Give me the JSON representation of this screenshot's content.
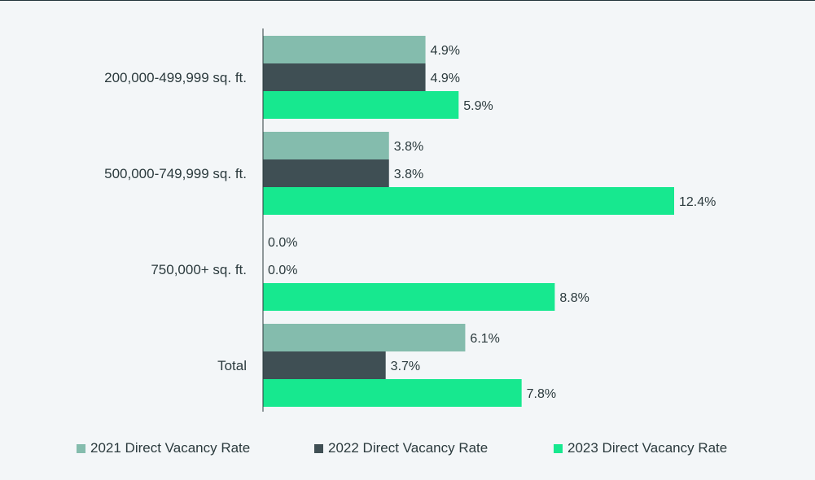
{
  "chart_data": {
    "type": "bar",
    "orientation": "horizontal",
    "categories": [
      "200,000-499,999 sq. ft.",
      "500,000-749,999 sq. ft.",
      "750,000+ sq. ft.",
      "Total"
    ],
    "series": [
      {
        "name": "2021 Direct Vacancy Rate",
        "color": "#84bcad",
        "values": [
          4.9,
          3.8,
          0.0,
          6.1
        ],
        "labels": [
          "4.9%",
          "3.8%",
          "0.0%",
          "6.1%"
        ]
      },
      {
        "name": "2022 Direct Vacancy Rate",
        "color": "#3f4f54",
        "values": [
          4.9,
          3.8,
          0.0,
          3.7
        ],
        "labels": [
          "4.9%",
          "3.8%",
          "0.0%",
          "3.7%"
        ]
      },
      {
        "name": "2023 Direct Vacancy Rate",
        "color": "#17e88f",
        "values": [
          5.9,
          12.4,
          8.8,
          7.8
        ],
        "labels": [
          "5.9%",
          "12.4%",
          "8.8%",
          "7.8%"
        ]
      }
    ],
    "xlim": [
      0,
      16
    ],
    "grid": false,
    "legend_position": "bottom"
  }
}
